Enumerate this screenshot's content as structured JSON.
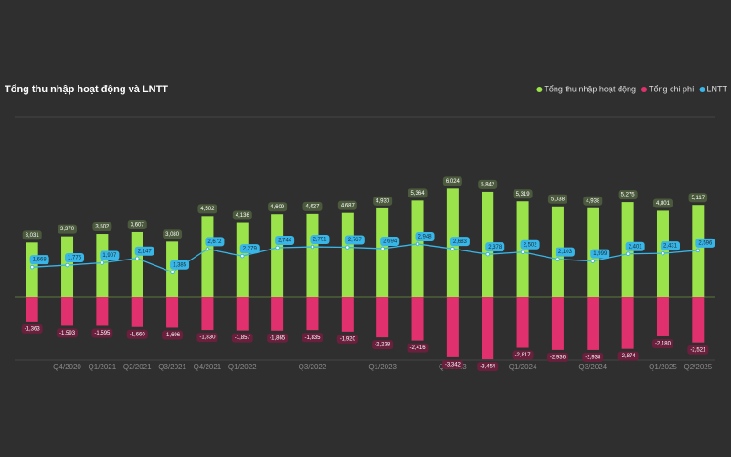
{
  "chart_data": {
    "type": "bar",
    "title": "Tổng thu nhập hoạt động và LNTT",
    "categories": [
      null,
      "Q4/2020",
      "Q1/2021",
      "Q2/2021",
      "Q3/2021",
      "Q4/2021",
      "Q1/2022",
      null,
      "Q3/2022",
      null,
      "Q1/2023",
      null,
      "Q3/2023",
      null,
      "Q1/2024",
      null,
      "Q3/2024",
      null,
      "Q1/2025",
      "Q2/2025"
    ],
    "series": [
      {
        "name": "Tổng thu nhập hoạt động",
        "color": "#9be34a",
        "values": [
          3031,
          3370,
          3502,
          3607,
          3080,
          4502,
          4136,
          4609,
          4627,
          4687,
          4930,
          5364,
          6024,
          5842,
          5319,
          5038,
          4938,
          5275,
          4801,
          5117
        ],
        "value_labels": [
          "3,031",
          "3,370",
          "3,502",
          "3,607",
          "3,080",
          "4,502",
          "4,136",
          "4,609",
          "4,627",
          "4,687",
          "4,930",
          "5,364",
          "6,024",
          "5,842",
          "5,319",
          "5,038",
          "4,938",
          "5,275",
          "4,801",
          "5,117"
        ]
      },
      {
        "name": "Tổng chi phí",
        "color": "#e0306e",
        "values": [
          -1363,
          -1593,
          -1595,
          -1660,
          -1696,
          -1830,
          -1857,
          -1865,
          -1835,
          -1920,
          -2238,
          -2416,
          -3342,
          -3454,
          -2817,
          -2936,
          -2938,
          -2874,
          -2180,
          -2521
        ],
        "value_labels": [
          "-1,363",
          "-1,593",
          "-1,595",
          "-1,660",
          "-1,696",
          "-1,830",
          "-1,857",
          "-1,865",
          "-1,835",
          "-1,920",
          "-2,238",
          "-2,416",
          "-3,342",
          "-3,454",
          "-2,817",
          "-2,936",
          "-2,938",
          "-2,874",
          "-2,180",
          "-2,521"
        ]
      },
      {
        "name": "LNTT",
        "color": "#38b6e8",
        "type": "line",
        "values": [
          1668,
          1776,
          1907,
          2147,
          1385,
          2672,
          2279,
          2744,
          2791,
          2767,
          2694,
          2948,
          2683,
          2378,
          2502,
          2103,
          1999,
          2401,
          2431,
          2596
        ],
        "value_labels": [
          "1,668",
          "1,776",
          "1,907",
          "2,147",
          "1,385",
          "2,672",
          "2,279",
          "2,744",
          "2,791",
          "2,767",
          "2,694",
          "2,948",
          "2,683",
          "2,378",
          "2,502",
          "2,103",
          "1,999",
          "2,401",
          "2,431",
          "2,596"
        ]
      }
    ],
    "ylim": [
      -3500,
      10000
    ]
  }
}
